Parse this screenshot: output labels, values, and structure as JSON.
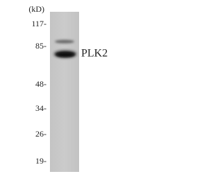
{
  "unit_label": "(kD)",
  "markers": [
    "117-",
    "85-",
    "48-",
    "34-",
    "26-",
    "19-"
  ],
  "band_label": "PLK2"
}
